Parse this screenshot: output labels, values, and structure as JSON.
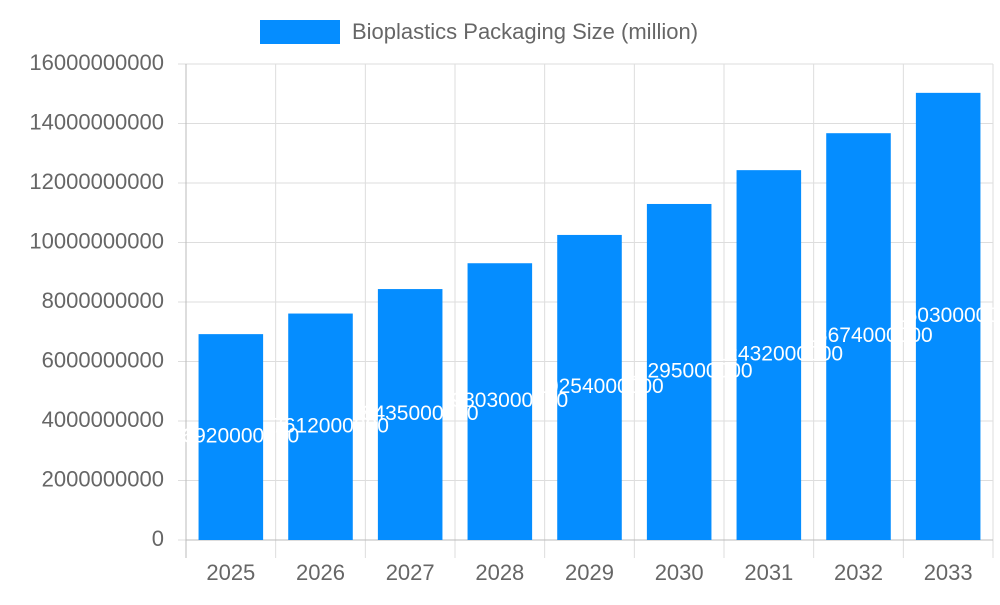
{
  "chart_data": {
    "type": "bar",
    "categories": [
      "2025",
      "2026",
      "2027",
      "2028",
      "2029",
      "2030",
      "2031",
      "2032",
      "2033"
    ],
    "series": [
      {
        "name": "Bioplastics Packaging Size (million)",
        "color": "#058dff",
        "values": [
          6920000000,
          7612000000,
          8435000000,
          9303000000,
          10254000000,
          11295000000,
          12432000000,
          13674000000,
          15030000000
        ]
      }
    ],
    "ylim": [
      0,
      16000000000
    ],
    "yticks": [
      0,
      2000000000,
      4000000000,
      6000000000,
      8000000000,
      10000000000,
      12000000000,
      14000000000,
      16000000000
    ],
    "grid": true,
    "legend": "top"
  }
}
